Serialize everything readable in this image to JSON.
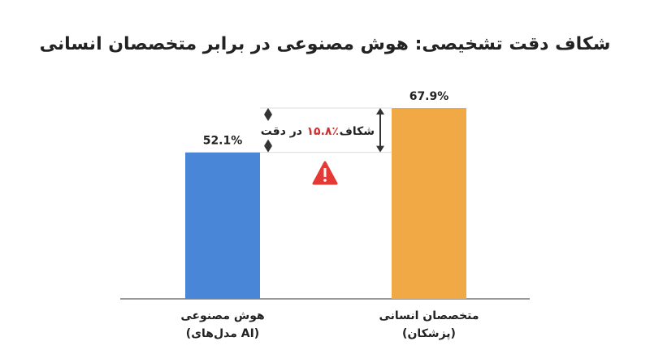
{
  "chart_data": {
    "type": "bar",
    "title": "شکاف دقت تشخیصی: هوش مصنوعی در برابر متخصصان انسانی",
    "categories": [
      [
        "هوش مصنوعی",
        "(مدل‌های AI)"
      ],
      [
        "متخصصان انسانی",
        "(پزشکان)"
      ]
    ],
    "values": [
      52.1,
      67.9
    ],
    "value_labels": [
      "52.1%",
      "67.9%"
    ],
    "colors": [
      "#4a86d8",
      "#f0a945"
    ],
    "annotation": {
      "before": "شکاف",
      "highlight": "۱۵.۸٪",
      "after": "در دقت"
    }
  }
}
